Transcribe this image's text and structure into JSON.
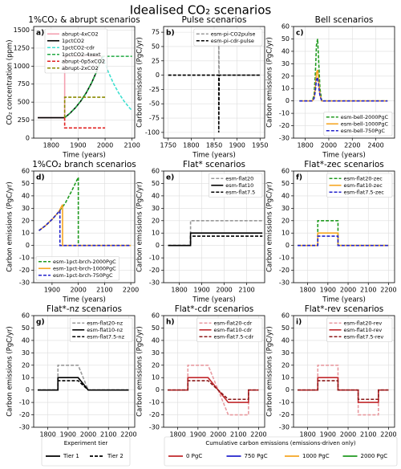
{
  "title": "Idealised CO₂ scenarios",
  "chart_data": [
    {
      "type": "line",
      "title": "1%CO₂ & abrupt scenarios",
      "panel_label": "a)",
      "xlabel": "Time (years)",
      "ylabel": "CO₂ concentration (ppm)",
      "xlim": [
        1735,
        2110
      ],
      "ylim": [
        0,
        1550
      ],
      "xticks": [
        1800,
        1900,
        2000,
        2100
      ],
      "yticks": [
        0,
        250,
        500,
        750,
        1000,
        1250,
        1500
      ],
      "grid": true,
      "legend": "upper left",
      "series": [
        {
          "name": "abrupt-4xCO2",
          "color": "#f4a0b0",
          "dash": "solid",
          "x": [
            1750,
            1850,
            1850,
            2000
          ],
          "values": [
            284,
            284,
            1136,
            1136
          ]
        },
        {
          "name": "1pctCO2",
          "color": "#000000",
          "dash": "solid",
          "x": [
            1750,
            1850,
            1870,
            1890,
            1910,
            1930,
            1950,
            1970,
            1990
          ],
          "values": [
            284,
            284,
            346.5,
            422.8,
            515.9,
            629.5,
            768.1,
            937.2,
            1136
          ]
        },
        {
          "name": "1pctCO2-cdr",
          "color": "#40e0d0",
          "dash": "dashed",
          "x": [
            1990,
            2010,
            2030,
            2050,
            2070,
            2090,
            2100
          ],
          "values": [
            1136,
            937.2,
            768.1,
            629.5,
            515.9,
            422.8,
            383
          ]
        },
        {
          "name": "1pctCO2-4xext",
          "color": "#22aa44",
          "dash": "dashed",
          "x": [
            1850,
            1870,
            1890,
            1910,
            1930,
            1950,
            1970,
            1990,
            2100
          ],
          "values": [
            284,
            346.5,
            422.8,
            515.9,
            629.5,
            768.1,
            937.2,
            1136,
            1136
          ]
        },
        {
          "name": "abrupt-0p5xCO2",
          "color": "#e02020",
          "dash": "dashed",
          "x": [
            1850,
            1850,
            2000
          ],
          "values": [
            284,
            142,
            142
          ]
        },
        {
          "name": "abrupt-2xCO2",
          "color": "#8b8b00",
          "dash": "dashed",
          "x": [
            1850,
            1850,
            2000
          ],
          "values": [
            284,
            568,
            568
          ]
        }
      ]
    },
    {
      "type": "line",
      "title": "Pulse scenarios",
      "panel_label": "b)",
      "xlabel": "Time (years)",
      "ylabel": "Carbon emissions (PgC/yr)",
      "xlim": [
        1740,
        1960
      ],
      "ylim": [
        -110,
        85
      ],
      "xticks": [
        1750,
        1800,
        1850,
        1900,
        1950
      ],
      "yticks": [
        -100,
        -75,
        -50,
        -25,
        0,
        25,
        50,
        75
      ],
      "grid": true,
      "legend": "upper right",
      "series": [
        {
          "name": "esm-pi-CO2pulse",
          "color": "#999999",
          "dash": "dashed",
          "x": [
            1750,
            1860,
            1860,
            1861,
            1950
          ],
          "values": [
            0,
            0,
            65,
            0,
            0
          ]
        },
        {
          "name": "esm-pi-cdr-pulse",
          "color": "#000000",
          "dash": "dashed",
          "x": [
            1750,
            1860,
            1860,
            1861,
            1950
          ],
          "values": [
            0,
            0,
            -100,
            0,
            0
          ]
        }
      ]
    },
    {
      "type": "line",
      "title": "Bell scenarios",
      "panel_label": "c)",
      "xlabel": "Time (years)",
      "ylabel": "Carbon emissions (PgC/yr)",
      "xlim": [
        1700,
        2560
      ],
      "ylim": [
        -30,
        60
      ],
      "xticks": [
        1800,
        2000,
        2200,
        2400
      ],
      "yticks": [
        -30,
        -20,
        -10,
        0,
        10,
        20,
        30,
        40,
        50,
        60
      ],
      "grid": true,
      "legend": "lower right",
      "series": [
        {
          "name": "esm-bell-2000PgC",
          "color": "#1f9a1f",
          "dash": "dashed",
          "x": [
            1750,
            1860,
            1875,
            1885,
            1895,
            1905,
            1915,
            1925,
            1940,
            2500
          ],
          "values": [
            0,
            0,
            5,
            20,
            45,
            50,
            30,
            10,
            0,
            0
          ]
        },
        {
          "name": "esm-bell-1000PgC",
          "color": "#f5a623",
          "dash": "solid",
          "x": [
            1750,
            1860,
            1875,
            1885,
            1895,
            1905,
            1915,
            1925,
            1940,
            2500
          ],
          "values": [
            0,
            0,
            2.5,
            10,
            22.5,
            25,
            15,
            5,
            0,
            0
          ]
        },
        {
          "name": "esm-bell-750PgC",
          "color": "#2222cc",
          "dash": "dashed",
          "x": [
            1750,
            1860,
            1875,
            1885,
            1895,
            1905,
            1915,
            1925,
            1940,
            2500
          ],
          "values": [
            0,
            0,
            2,
            7.5,
            17,
            19,
            11,
            4,
            0,
            0
          ]
        }
      ]
    },
    {
      "type": "line",
      "title": "1%CO₂ branch scenarios",
      "panel_label": "d)",
      "xlabel": "Time (years)",
      "ylabel": "Carbon emissions (PgC/yr)",
      "xlim": [
        1830,
        2215
      ],
      "ylim": [
        -30,
        60
      ],
      "xticks": [
        1900,
        2000,
        2100,
        2200
      ],
      "yticks": [
        -30,
        -20,
        -10,
        0,
        10,
        20,
        30,
        40,
        50,
        60
      ],
      "grid": true,
      "legend": "lower left",
      "series": [
        {
          "name": "esm-1pct-brch-2000PgC",
          "color": "#1f9a1f",
          "dash": "dashed",
          "x": [
            1850,
            1875,
            1900,
            1925,
            1950,
            1975,
            2000,
            2000,
            2200
          ],
          "values": [
            12,
            16,
            21,
            27,
            34,
            44,
            55,
            0,
            0
          ]
        },
        {
          "name": "esm-1pct-brch-1000PgC",
          "color": "#f5a623",
          "dash": "solid",
          "x": [
            1850,
            1875,
            1900,
            1925,
            1940,
            1940,
            2200
          ],
          "values": [
            12,
            16,
            21,
            27,
            33,
            0,
            0
          ]
        },
        {
          "name": "esm-1pct-brch-750PgC",
          "color": "#2222cc",
          "dash": "dashed",
          "x": [
            1850,
            1875,
            1900,
            1925,
            1930,
            1930,
            2200
          ],
          "values": [
            12,
            16,
            21,
            27,
            28,
            0,
            0
          ]
        }
      ]
    },
    {
      "type": "line",
      "title": "Flat* scenarios",
      "panel_label": "e)",
      "xlabel": "Time (years)",
      "ylabel": "Carbon emissions (PgC/yr)",
      "xlim": [
        1730,
        2180
      ],
      "ylim": [
        -30,
        60
      ],
      "xticks": [
        1800,
        1900,
        2000,
        2100
      ],
      "yticks": [
        -30,
        -20,
        -10,
        0,
        10,
        20,
        30,
        40,
        50,
        60
      ],
      "grid": true,
      "legend": "upper right",
      "series": [
        {
          "name": "esm-flat20",
          "color": "#999999",
          "dash": "dashed",
          "x": [
            1750,
            1850,
            1850,
            2170
          ],
          "values": [
            0,
            0,
            20,
            20
          ]
        },
        {
          "name": "esm-flat10",
          "color": "#000000",
          "dash": "solid",
          "x": [
            1750,
            1850,
            1850,
            2170
          ],
          "values": [
            0,
            0,
            10,
            10
          ]
        },
        {
          "name": "esm-flat7.5",
          "color": "#000000",
          "dash": "dashed",
          "x": [
            1750,
            1850,
            1850,
            2170
          ],
          "values": [
            0,
            0,
            7.5,
            7.5
          ]
        }
      ]
    },
    {
      "type": "line",
      "title": "Flat*-zec scenarios",
      "panel_label": "f)",
      "xlabel": "Time (years)",
      "ylabel": "Carbon emissions (PgC/yr)",
      "xlim": [
        1730,
        2230
      ],
      "ylim": [
        -30,
        60
      ],
      "xticks": [
        1800,
        1900,
        2000,
        2100,
        2200
      ],
      "yticks": [
        -30,
        -20,
        -10,
        0,
        10,
        20,
        30,
        40,
        50,
        60
      ],
      "grid": true,
      "legend": "upper right",
      "series": [
        {
          "name": "esm-flat20-zec",
          "color": "#1f9a1f",
          "dash": "dashed",
          "x": [
            1750,
            1850,
            1850,
            1950,
            1950,
            2200
          ],
          "values": [
            0,
            0,
            20,
            20,
            0,
            0
          ]
        },
        {
          "name": "esm-flat10-zec",
          "color": "#f5a623",
          "dash": "solid",
          "x": [
            1750,
            1850,
            1850,
            1950,
            1950,
            2200
          ],
          "values": [
            0,
            0,
            10,
            10,
            0,
            0
          ]
        },
        {
          "name": "esm-flat7.5-zec",
          "color": "#2222cc",
          "dash": "dashed",
          "x": [
            1750,
            1850,
            1850,
            1950,
            1950,
            2200
          ],
          "values": [
            0,
            0,
            7.5,
            7.5,
            0,
            0
          ]
        }
      ]
    },
    {
      "type": "line",
      "title": "Flat*-nz scenarios",
      "panel_label": "g)",
      "ylabel": "Carbon emissions (PgC/yr)",
      "xlim": [
        1730,
        2230
      ],
      "ylim": [
        -30,
        60
      ],
      "xticks": [
        1800,
        1900,
        2000,
        2100,
        2200
      ],
      "yticks": [
        -30,
        -20,
        -10,
        0,
        10,
        20,
        30,
        40,
        50,
        60
      ],
      "grid": true,
      "legend": "upper right",
      "series": [
        {
          "name": "esm-flat20-nz",
          "color": "#999999",
          "dash": "dashed",
          "x": [
            1750,
            1850,
            1850,
            1950,
            2000,
            2200
          ],
          "values": [
            0,
            0,
            20,
            20,
            0,
            0
          ]
        },
        {
          "name": "esm-flat10-nz",
          "color": "#000000",
          "dash": "solid",
          "x": [
            1750,
            1850,
            1850,
            1950,
            2000,
            2200
          ],
          "values": [
            0,
            0,
            10,
            10,
            0,
            0
          ]
        },
        {
          "name": "esm-flat7.5-nz",
          "color": "#000000",
          "dash": "dashed",
          "x": [
            1750,
            1850,
            1850,
            1950,
            2000,
            2200
          ],
          "values": [
            0,
            0,
            7.5,
            7.5,
            0,
            0
          ]
        }
      ]
    },
    {
      "type": "line",
      "title": "Flat*-cdr scenarios",
      "panel_label": "h)",
      "ylabel": "Carbon emissions (PgC/yr)",
      "xlim": [
        1730,
        2230
      ],
      "ylim": [
        -30,
        60
      ],
      "xticks": [
        1800,
        1900,
        2000,
        2100,
        2200
      ],
      "yticks": [
        -30,
        -20,
        -10,
        0,
        10,
        20,
        30,
        40,
        50,
        60
      ],
      "grid": true,
      "legend": "upper right",
      "series": [
        {
          "name": "esm-flat20-cdr",
          "color": "#e89aa0",
          "dash": "dashed",
          "x": [
            1750,
            1850,
            1850,
            1950,
            2050,
            2150,
            2150,
            2200
          ],
          "values": [
            0,
            0,
            20,
            20,
            -20,
            -20,
            0,
            0
          ]
        },
        {
          "name": "esm-flat10-cdr",
          "color": "#c0282c",
          "dash": "solid",
          "x": [
            1750,
            1850,
            1850,
            1950,
            2050,
            2150,
            2150,
            2200
          ],
          "values": [
            0,
            0,
            10,
            10,
            -10,
            -10,
            0,
            0
          ]
        },
        {
          "name": "esm-flat7.5-cdr",
          "color": "#8b1a1a",
          "dash": "dashed",
          "x": [
            1750,
            1850,
            1850,
            1950,
            2050,
            2150,
            2150,
            2200
          ],
          "values": [
            0,
            0,
            7.5,
            7.5,
            -7.5,
            -7.5,
            0,
            0
          ]
        }
      ]
    },
    {
      "type": "line",
      "title": "Flat*-rev scenarios",
      "panel_label": "i)",
      "ylabel": "Carbon emissions (PgC/yr)",
      "xlim": [
        1730,
        2230
      ],
      "ylim": [
        -30,
        60
      ],
      "xticks": [
        1800,
        1900,
        2000,
        2100,
        2200
      ],
      "yticks": [
        -30,
        -20,
        -10,
        0,
        10,
        20,
        30,
        40,
        50,
        60
      ],
      "grid": true,
      "legend": "upper right",
      "series": [
        {
          "name": "esm-flat20-rev",
          "color": "#e89aa0",
          "dash": "dashed",
          "x": [
            1750,
            1850,
            1850,
            1950,
            1950,
            2050,
            2050,
            2150,
            2150,
            2200
          ],
          "values": [
            0,
            0,
            20,
            20,
            0,
            0,
            -20,
            -20,
            0,
            0
          ]
        },
        {
          "name": "esm-flat10-rev",
          "color": "#c0282c",
          "dash": "solid",
          "x": [
            1750,
            1850,
            1850,
            1950,
            1950,
            2050,
            2050,
            2150,
            2150,
            2200
          ],
          "values": [
            0,
            0,
            10,
            10,
            0,
            0,
            -10,
            -10,
            0,
            0
          ]
        },
        {
          "name": "esm-flat7.5-rev",
          "color": "#8b1a1a",
          "dash": "dashed",
          "x": [
            1750,
            1850,
            1850,
            1950,
            1950,
            2050,
            2050,
            2150,
            2150,
            2200
          ],
          "values": [
            0,
            0,
            7.5,
            7.5,
            0,
            0,
            -7.5,
            -7.5,
            0,
            0
          ]
        }
      ]
    }
  ],
  "legends": [
    {
      "title": "Experiment tier",
      "entries": [
        {
          "name": "Tier 1",
          "color": "#000000",
          "dash": "solid"
        },
        {
          "name": "Tier 2",
          "color": "#000000",
          "dash": "dashed"
        }
      ]
    },
    {
      "title": "Cumulative carbon emissions (emissions-driven only)",
      "entries": [
        {
          "name": "0 PgC",
          "color": "#c0282c",
          "dash": "solid"
        },
        {
          "name": "750 PgC",
          "color": "#2222cc",
          "dash": "solid"
        },
        {
          "name": "1000 PgC",
          "color": "#f5a623",
          "dash": "solid"
        },
        {
          "name": "2000 PgC",
          "color": "#1f9a1f",
          "dash": "solid"
        }
      ]
    }
  ]
}
